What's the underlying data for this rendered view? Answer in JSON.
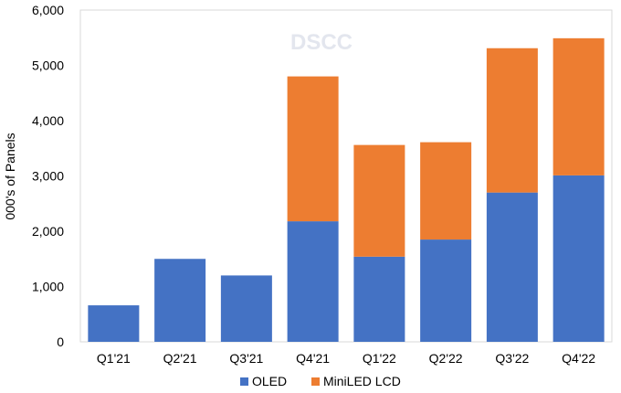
{
  "chart_data": {
    "type": "bar",
    "stacked": true,
    "categories": [
      "Q1'21",
      "Q2'21",
      "Q3'21",
      "Q4'21",
      "Q1'22",
      "Q2'22",
      "Q3'22",
      "Q4'22"
    ],
    "series": [
      {
        "name": "OLED",
        "color": "#4472C4",
        "values": [
          660,
          1500,
          1200,
          2180,
          1540,
          1850,
          2700,
          3010
        ]
      },
      {
        "name": "MiniLED LCD",
        "color": "#ED7D31",
        "values": [
          0,
          0,
          0,
          2620,
          2020,
          1760,
          2610,
          2480
        ]
      }
    ],
    "title": "",
    "xlabel": "",
    "ylabel": "000's of Panels",
    "ylim": [
      0,
      6000
    ],
    "yticks": [
      0,
      1000,
      2000,
      3000,
      4000,
      5000,
      6000
    ],
    "ytick_labels": [
      "0",
      "1,000",
      "2,000",
      "3,000",
      "4,000",
      "5,000",
      "6,000"
    ],
    "grid": false,
    "legend_position": "bottom-center",
    "watermark": "DSCC"
  }
}
